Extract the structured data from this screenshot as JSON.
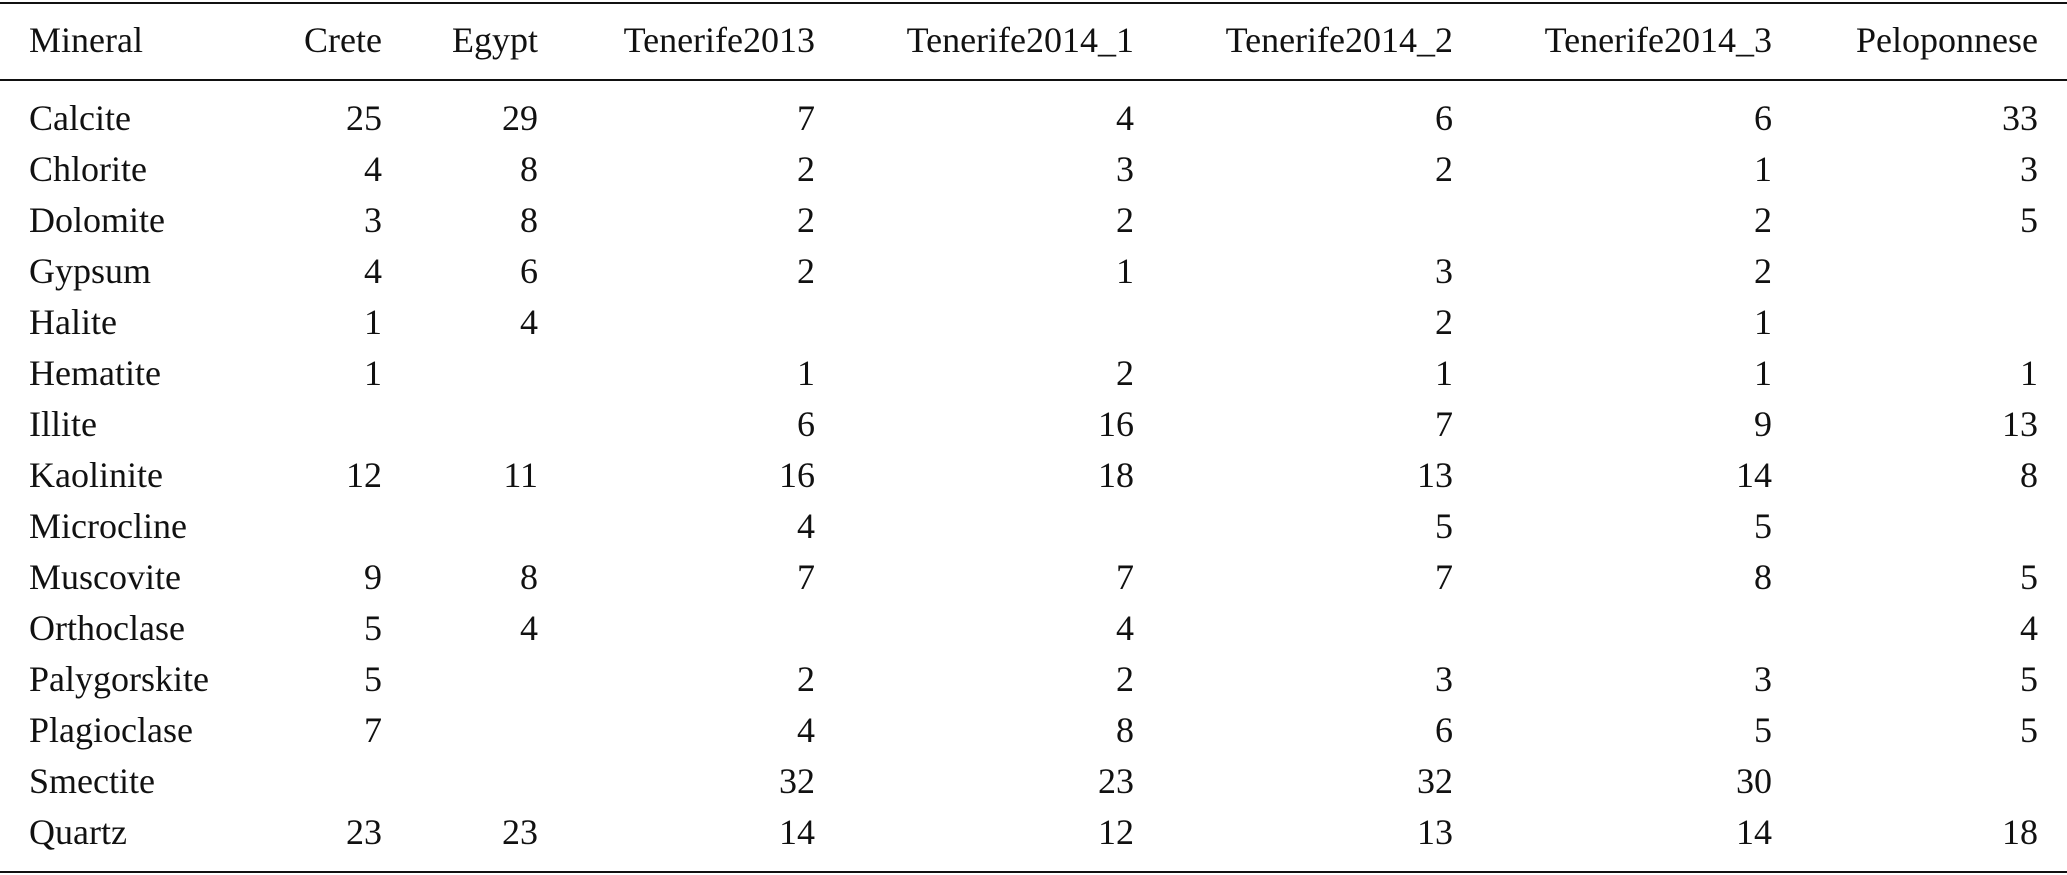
{
  "table": {
    "header": [
      "Mineral",
      "Crete",
      "Egypt",
      "Tenerife2013",
      "Tenerife2014_1",
      "Tenerife2014_2",
      "Tenerife2014_3",
      "Peloponnese"
    ],
    "rows": [
      [
        "Calcite",
        25,
        29,
        7,
        4,
        6,
        6,
        33
      ],
      [
        "Chlorite",
        4,
        8,
        2,
        3,
        2,
        1,
        3
      ],
      [
        "Dolomite",
        3,
        8,
        2,
        2,
        null,
        2,
        5
      ],
      [
        "Gypsum",
        4,
        6,
        2,
        1,
        3,
        2,
        null
      ],
      [
        "Halite",
        1,
        4,
        null,
        null,
        2,
        1,
        null
      ],
      [
        "Hematite",
        1,
        null,
        1,
        2,
        1,
        1,
        1
      ],
      [
        "Illite",
        null,
        null,
        6,
        16,
        7,
        9,
        13
      ],
      [
        "Kaolinite",
        12,
        11,
        16,
        18,
        13,
        14,
        8
      ],
      [
        "Microcline",
        null,
        null,
        4,
        null,
        5,
        5,
        null
      ],
      [
        "Muscovite",
        9,
        8,
        7,
        7,
        7,
        8,
        5
      ],
      [
        "Orthoclase",
        5,
        4,
        null,
        4,
        null,
        null,
        4
      ],
      [
        "Palygorskite",
        5,
        null,
        2,
        2,
        3,
        3,
        5
      ],
      [
        "Plagioclase",
        7,
        null,
        4,
        8,
        6,
        5,
        5
      ],
      [
        "Smectite",
        null,
        null,
        32,
        23,
        32,
        30,
        null
      ],
      [
        "Quartz",
        23,
        23,
        14,
        12,
        13,
        14,
        18
      ]
    ]
  }
}
